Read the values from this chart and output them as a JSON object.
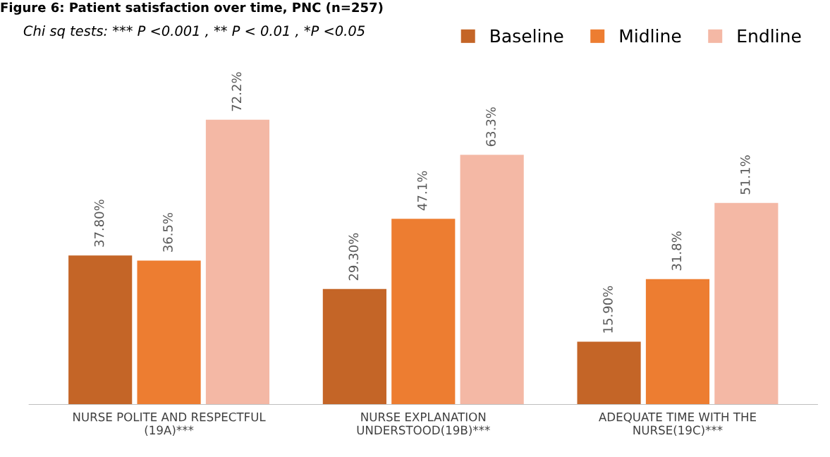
{
  "chart_data": {
    "type": "bar",
    "title": "Figure 6: Patient satisfaction over time, PNC (n=257)",
    "annotations": [
      "Chi sq tests: *** P <0.001 , ** P < 0.01 , *P <0.05"
    ],
    "categories": [
      "NURSE POLITE AND RESPECTFUL (19A)***",
      "NURSE EXPLANATION UNDERSTOOD(19B)***",
      "ADEQUATE TIME WITH THE NURSE(19C)***"
    ],
    "series": [
      {
        "name": "Baseline",
        "color": "#c46527",
        "values": [
          37.8,
          29.3,
          15.9
        ],
        "value_labels": [
          "37.80%",
          "29.30%",
          "15.90%"
        ]
      },
      {
        "name": "Midline",
        "color": "#ed7d31",
        "values": [
          36.5,
          47.1,
          31.8
        ],
        "value_labels": [
          "36.5%",
          "47.1%",
          "31.8%"
        ]
      },
      {
        "name": "Endline",
        "color": "#f4b8a5",
        "values": [
          72.2,
          63.3,
          51.1
        ],
        "value_labels": [
          "72.2%",
          "63.3%",
          "51.1%"
        ]
      }
    ],
    "legend": "top right",
    "grid": false
  }
}
